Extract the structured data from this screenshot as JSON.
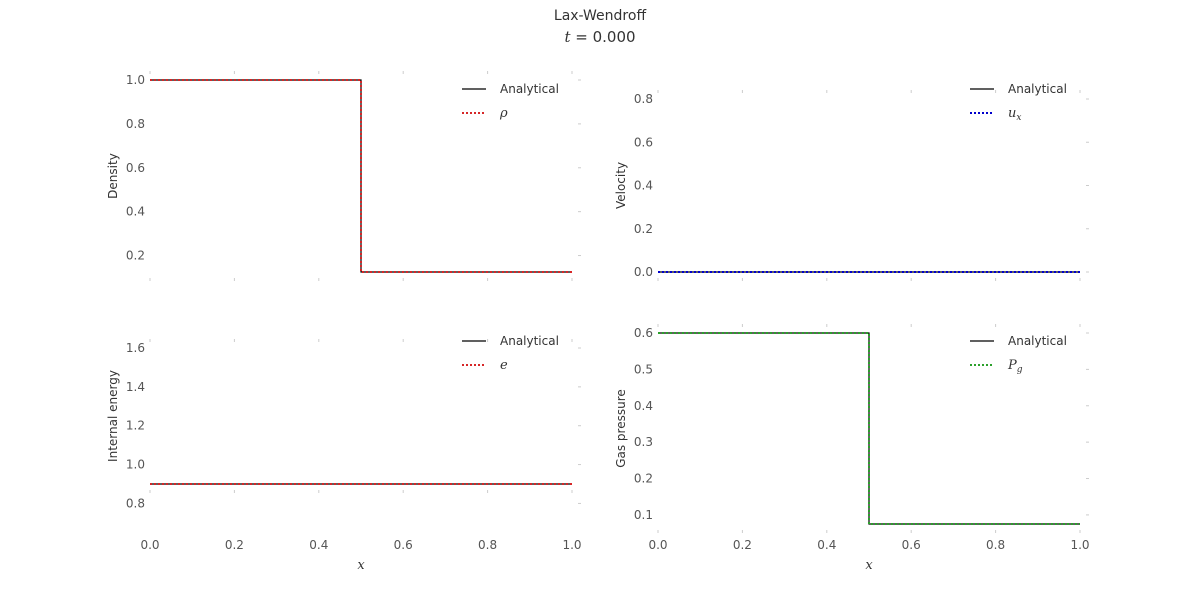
{
  "figure": {
    "title": "Lax-Wendroff",
    "subtitle": "t = 0.000"
  },
  "colors": {
    "analytical": "#000000",
    "density": "#d62728",
    "velocity": "#0000cc",
    "energy": "#d62728",
    "pressure": "#2ca02c",
    "grid_tick": "#cccccc"
  },
  "chart_data": [
    {
      "type": "line",
      "ylabel": "Density",
      "xlabel": "",
      "xlim": [
        0.0,
        1.0
      ],
      "ylim": [
        0.1,
        1.0
      ],
      "yticks": [
        "0.2",
        "0.4",
        "0.6",
        "0.8",
        "1.0"
      ],
      "xticks": [],
      "legend_position": "top-right",
      "series": [
        {
          "name": "Analytical",
          "style": "solid",
          "color_key": "analytical",
          "x": [
            0.0,
            0.5,
            0.5,
            1.0
          ],
          "y": [
            1.0,
            1.0,
            0.125,
            0.125
          ]
        },
        {
          "name": "ρ",
          "style": "dotted",
          "color_key": "density",
          "x": [
            0.0,
            0.5,
            0.5,
            1.0
          ],
          "y": [
            1.0,
            1.0,
            0.125,
            0.125
          ]
        }
      ]
    },
    {
      "type": "line",
      "ylabel": "Velocity",
      "xlabel": "",
      "xlim": [
        0.0,
        1.0
      ],
      "ylim": [
        0.0,
        0.95
      ],
      "yticks": [
        "0.0",
        "0.2",
        "0.4",
        "0.6",
        "0.8"
      ],
      "xticks": [],
      "legend_position": "top-right",
      "series": [
        {
          "name": "Analytical",
          "style": "solid",
          "color_key": "analytical",
          "x": [
            0.0,
            1.0
          ],
          "y": [
            0.0,
            0.0
          ]
        },
        {
          "name": "u_x",
          "style": "dotted",
          "color_key": "velocity",
          "x": [
            0.0,
            1.0
          ],
          "y": [
            0.0,
            0.0
          ]
        }
      ]
    },
    {
      "type": "line",
      "ylabel": "Internal energy",
      "xlabel": "x",
      "xlim": [
        0.0,
        1.0
      ],
      "ylim": [
        0.7,
        1.8
      ],
      "yticks": [
        "0.8",
        "1.0",
        "1.2",
        "1.4",
        "1.6"
      ],
      "xticks": [
        "0.0",
        "0.2",
        "0.4",
        "0.6",
        "0.8",
        "1.0"
      ],
      "legend_position": "top-right",
      "series": [
        {
          "name": "Analytical",
          "style": "solid",
          "color_key": "analytical",
          "x": [
            0.0,
            1.0
          ],
          "y": [
            0.9,
            0.9
          ]
        },
        {
          "name": "e",
          "style": "dotted",
          "color_key": "energy",
          "x": [
            0.0,
            1.0
          ],
          "y": [
            0.9,
            0.9
          ]
        }
      ]
    },
    {
      "type": "line",
      "ylabel": "Gas pressure",
      "xlabel": "x",
      "xlim": [
        0.0,
        1.0
      ],
      "ylim": [
        0.05,
        0.6
      ],
      "yticks": [
        "0.1",
        "0.2",
        "0.3",
        "0.4",
        "0.5",
        "0.6"
      ],
      "xticks": [
        "0.0",
        "0.2",
        "0.4",
        "0.6",
        "0.8",
        "1.0"
      ],
      "legend_position": "top-right",
      "series": [
        {
          "name": "Analytical",
          "style": "solid",
          "color_key": "analytical",
          "x": [
            0.0,
            0.5,
            0.5,
            1.0
          ],
          "y": [
            0.6,
            0.6,
            0.075,
            0.075
          ]
        },
        {
          "name": "P_g",
          "style": "dotted",
          "color_key": "pressure",
          "x": [
            0.0,
            0.5,
            0.5,
            1.0
          ],
          "y": [
            0.6,
            0.6,
            0.075,
            0.075
          ]
        }
      ]
    }
  ]
}
